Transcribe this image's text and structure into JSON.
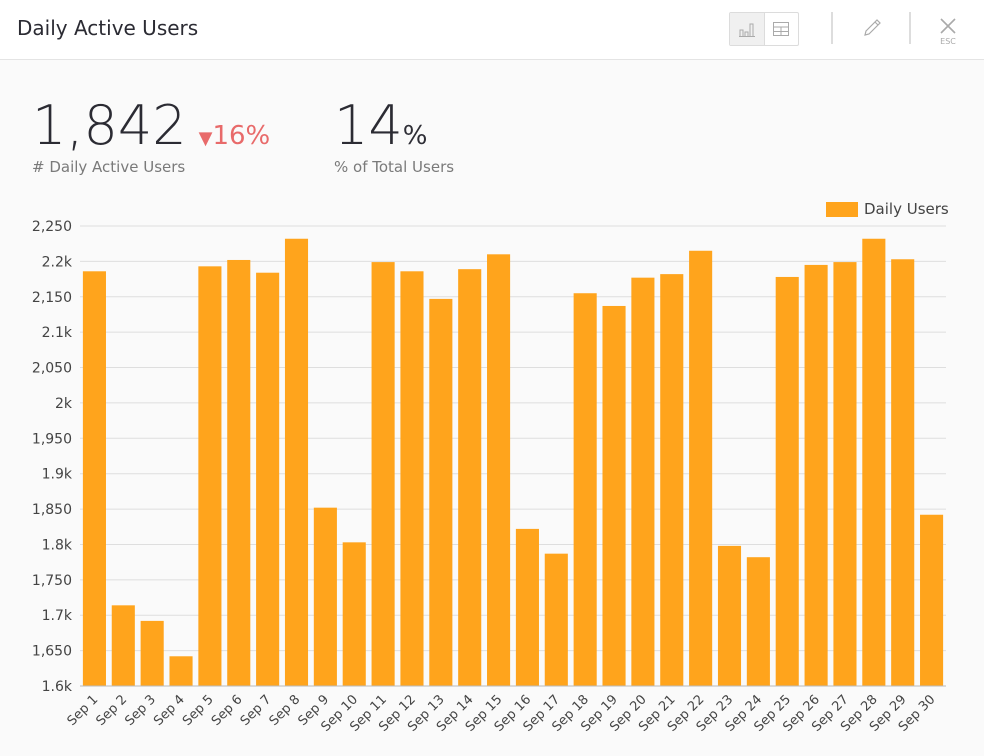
{
  "header": {
    "title": "Daily Active Users",
    "esc_label": "ESC",
    "icons": [
      "bar-chart-icon",
      "table-icon",
      "pencil-icon",
      "close-icon"
    ]
  },
  "kpis": {
    "value": "1,842",
    "delta": "16%",
    "delta_direction": "down",
    "value_label": "# Daily Active Users",
    "percent": "14",
    "percent_unit": "%",
    "percent_label": "% of Total Users"
  },
  "colors": {
    "bar": "#ffa41c",
    "negative": "#e86a6a"
  },
  "chart_data": {
    "type": "bar",
    "legend": {
      "label": "Daily Users",
      "position": "top-right"
    },
    "grid": true,
    "ylim": [
      1600,
      2250
    ],
    "yticks": [
      1600,
      1650,
      1700,
      1750,
      1800,
      1850,
      1900,
      1950,
      2000,
      2050,
      2100,
      2150,
      2200,
      2250
    ],
    "ytick_labels": [
      "1.6k",
      "1,650",
      "1.7k",
      "1,750",
      "1.8k",
      "1,850",
      "1.9k",
      "1,950",
      "2k",
      "2,050",
      "2.1k",
      "2,150",
      "2.2k",
      "2,250"
    ],
    "categories": [
      "Sep 1",
      "Sep 2",
      "Sep 3",
      "Sep 4",
      "Sep 5",
      "Sep 6",
      "Sep 7",
      "Sep 8",
      "Sep 9",
      "Sep 10",
      "Sep 11",
      "Sep 12",
      "Sep 13",
      "Sep 14",
      "Sep 15",
      "Sep 16",
      "Sep 17",
      "Sep 18",
      "Sep 19",
      "Sep 20",
      "Sep 21",
      "Sep 22",
      "Sep 23",
      "Sep 24",
      "Sep 25",
      "Sep 26",
      "Sep 27",
      "Sep 28",
      "Sep 29",
      "Sep 30"
    ],
    "series": [
      {
        "name": "Daily Users",
        "values": [
          2186,
          1714,
          1692,
          1642,
          2193,
          2202,
          2184,
          2232,
          1852,
          1803,
          2199,
          2186,
          2147,
          2189,
          2210,
          1822,
          1787,
          2155,
          2137,
          2177,
          2182,
          2215,
          1798,
          1782,
          2178,
          2195,
          2199,
          2232,
          2203,
          1842
        ]
      }
    ]
  }
}
